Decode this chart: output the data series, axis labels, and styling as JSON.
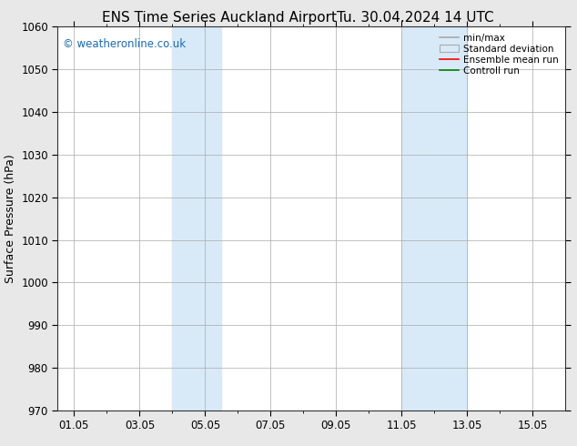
{
  "title": "ENS Time Series Auckland Airport",
  "title_right": "Tu. 30.04.2024 14 UTC",
  "ylabel": "Surface Pressure (hPa)",
  "ylim": [
    970,
    1060
  ],
  "yticks": [
    970,
    980,
    990,
    1000,
    1010,
    1020,
    1030,
    1040,
    1050,
    1060
  ],
  "xtick_labels": [
    "01.05",
    "03.05",
    "05.05",
    "07.05",
    "09.05",
    "11.05",
    "13.05",
    "15.05"
  ],
  "xtick_positions": [
    1,
    3,
    5,
    7,
    9,
    11,
    13,
    15
  ],
  "xlim": [
    0.5,
    16
  ],
  "shaded_bands": [
    {
      "xstart": 4.0,
      "xend": 5.5,
      "color": "#d8eaf7"
    },
    {
      "xstart": 11.0,
      "xend": 13.0,
      "color": "#d8eaf7"
    }
  ],
  "watermark": "© weatheronline.co.uk",
  "watermark_color": "#1a6bb5",
  "bg_color": "#e8e8e8",
  "plot_bg_color": "#ffffff",
  "legend_entries": [
    "min/max",
    "Standard deviation",
    "Ensemble mean run",
    "Controll run"
  ],
  "legend_colors": [
    "#888888",
    "#cccccc",
    "#ff0000",
    "#008000"
  ],
  "grid_color": "#aaaaaa",
  "title_fontsize": 11,
  "tick_fontsize": 8.5,
  "ylabel_fontsize": 9
}
